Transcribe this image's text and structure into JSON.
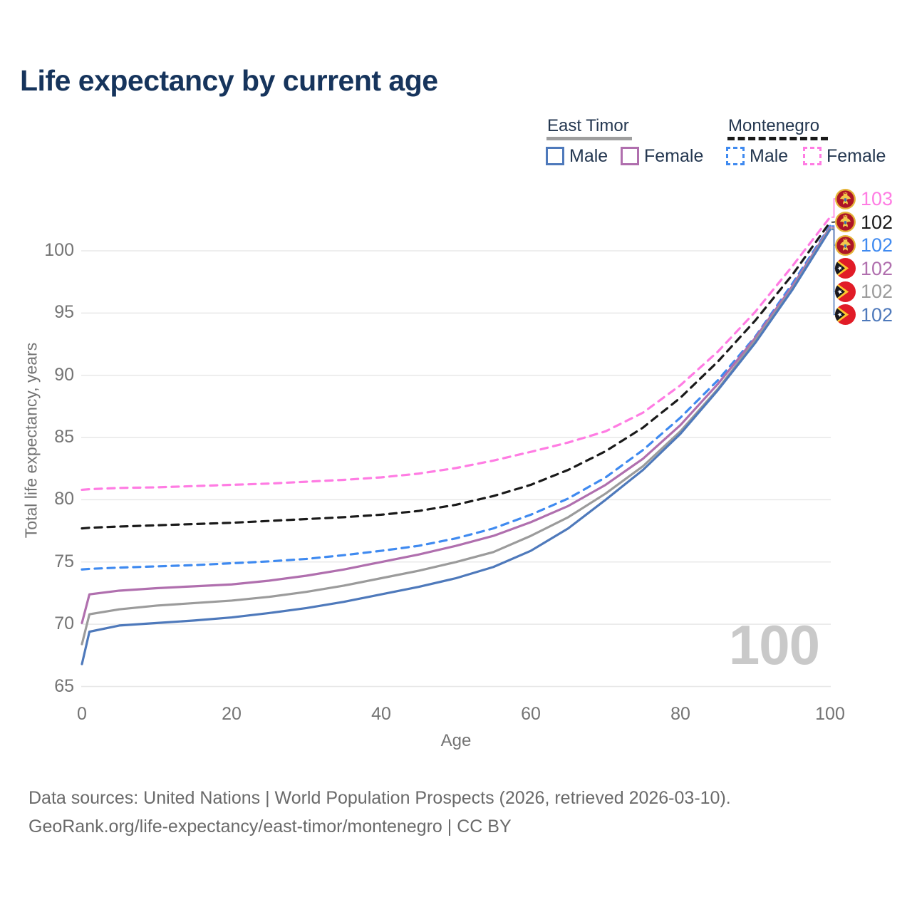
{
  "title": "Life expectancy by current age",
  "watermark": "100",
  "legend": {
    "groups": [
      {
        "country": "East Timor",
        "style": "solid",
        "underline_color": "#9e9e9e",
        "items": [
          {
            "label": "Male",
            "color": "#4e79bb"
          },
          {
            "label": "Female",
            "color": "#b06fae"
          }
        ]
      },
      {
        "country": "Montenegro",
        "style": "dashed",
        "underline_color": "#1a1a1a",
        "items": [
          {
            "label": "Male",
            "color": "#3f8af0"
          },
          {
            "label": "Female",
            "color": "#ff7ce3"
          }
        ]
      }
    ]
  },
  "chart_data": {
    "type": "line",
    "title": "Life expectancy by current age",
    "xlabel": "Age",
    "ylabel": "Total life expectancy, years",
    "xlim": [
      0,
      100
    ],
    "ylim": [
      65,
      103.5
    ],
    "xticks": [
      0,
      20,
      40,
      60,
      80,
      100
    ],
    "yticks": [
      65,
      70,
      75,
      80,
      85,
      90,
      95,
      100
    ],
    "grid": "horizontal",
    "legend_position": "top-right",
    "x": [
      0,
      1,
      5,
      10,
      15,
      20,
      25,
      30,
      35,
      40,
      45,
      50,
      55,
      60,
      65,
      70,
      75,
      80,
      85,
      90,
      95,
      100
    ],
    "series": [
      {
        "id": "montenegro-female",
        "country": "Montenegro",
        "sex": "Female",
        "label": "Montenegro Female",
        "color": "#ff7ce3",
        "line_style": "dashed",
        "flag": "montenegro",
        "end_label": "103",
        "values": [
          80.8,
          80.85,
          80.95,
          81.0,
          81.1,
          81.2,
          81.3,
          81.45,
          81.6,
          81.8,
          82.1,
          82.55,
          83.15,
          83.85,
          84.6,
          85.5,
          87.0,
          89.2,
          91.9,
          95.1,
          98.8,
          102.7
        ]
      },
      {
        "id": "montenegro-both",
        "country": "Montenegro",
        "sex": "Both sexes",
        "label": "Montenegro Total",
        "color": "#1a1a1a",
        "line_style": "dashed",
        "flag": "montenegro",
        "end_label": "102",
        "values": [
          77.7,
          77.75,
          77.85,
          77.95,
          78.05,
          78.15,
          78.3,
          78.45,
          78.6,
          78.8,
          79.1,
          79.6,
          80.3,
          81.2,
          82.4,
          83.9,
          85.8,
          88.2,
          91.1,
          94.4,
          98.1,
          102.3
        ]
      },
      {
        "id": "montenegro-male",
        "country": "Montenegro",
        "sex": "Male",
        "label": "Montenegro Male",
        "color": "#3f8af0",
        "line_style": "dashed",
        "flag": "montenegro",
        "end_label": "102",
        "values": [
          74.4,
          74.45,
          74.55,
          74.65,
          74.75,
          74.9,
          75.05,
          75.25,
          75.55,
          75.9,
          76.3,
          76.9,
          77.7,
          78.8,
          80.1,
          81.8,
          84.0,
          86.6,
          89.6,
          93.1,
          97.4,
          102.0
        ]
      },
      {
        "id": "east-timor-female",
        "country": "East Timor",
        "sex": "Female",
        "label": "East Timor Female",
        "color": "#b06fae",
        "line_style": "solid",
        "flag": "east-timor",
        "end_label": "102",
        "values": [
          70.1,
          72.4,
          72.7,
          72.9,
          73.05,
          73.2,
          73.5,
          73.9,
          74.4,
          75.0,
          75.6,
          76.3,
          77.1,
          78.2,
          79.5,
          81.2,
          83.3,
          86.0,
          89.3,
          93.0,
          97.2,
          101.9
        ]
      },
      {
        "id": "east-timor-both",
        "country": "East Timor",
        "sex": "Both sexes",
        "label": "East Timor Total",
        "color": "#9b9b9b",
        "line_style": "solid",
        "flag": "east-timor",
        "end_label": "102",
        "values": [
          68.4,
          70.8,
          71.2,
          71.5,
          71.7,
          71.9,
          72.2,
          72.6,
          73.1,
          73.7,
          74.3,
          75.0,
          75.8,
          77.1,
          78.6,
          80.5,
          82.7,
          85.5,
          88.9,
          92.8,
          97.0,
          101.8
        ]
      },
      {
        "id": "east-timor-male",
        "country": "East Timor",
        "sex": "Male",
        "label": "East Timor Male",
        "color": "#4e79bb",
        "line_style": "solid",
        "flag": "east-timor",
        "end_label": "102",
        "values": [
          66.8,
          69.4,
          69.9,
          70.1,
          70.3,
          70.55,
          70.9,
          71.3,
          71.8,
          72.4,
          73.0,
          73.7,
          74.6,
          75.9,
          77.7,
          80.0,
          82.4,
          85.3,
          88.8,
          92.6,
          96.9,
          101.7
        ]
      }
    ]
  },
  "footer": {
    "line1": "Data sources: United Nations | World Population Prospects (2026, retrieved 2026-03-10).",
    "line2": "GeoRank.org/life-expectancy/east-timor/montenegro | CC BY"
  }
}
